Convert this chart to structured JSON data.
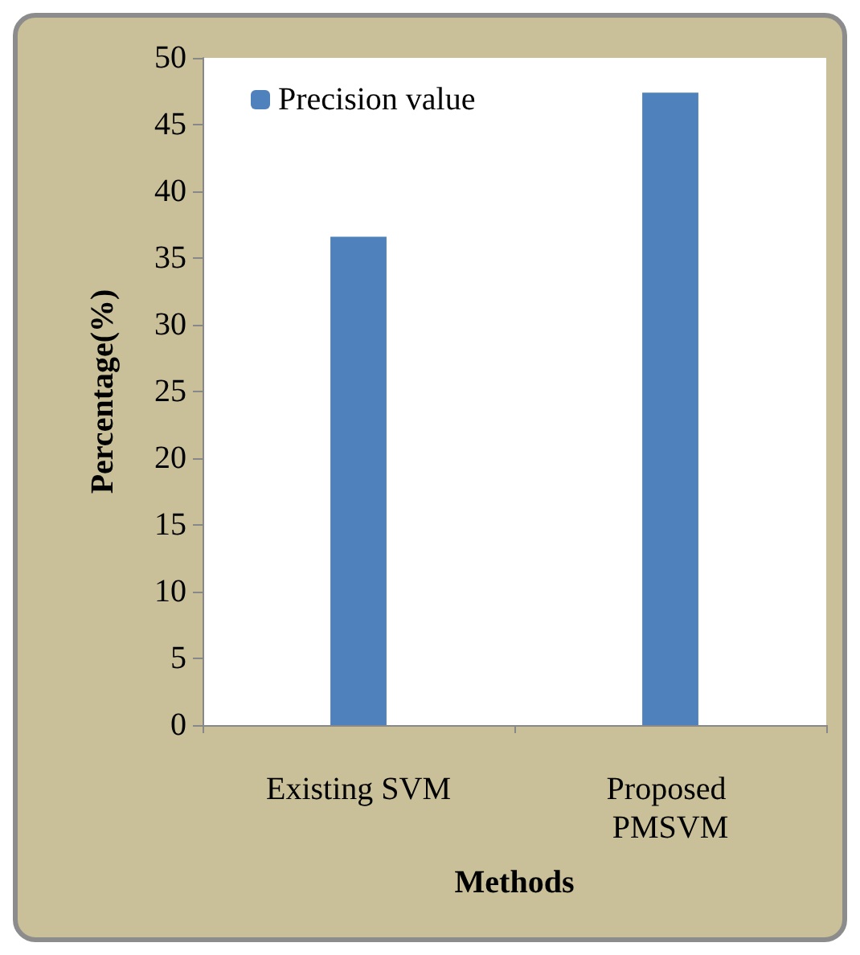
{
  "chart_data": {
    "type": "bar",
    "xlabel": "Methods",
    "ylabel": "Percentage(%)",
    "categories": [
      "Existing SVM",
      "Proposed PMSVM"
    ],
    "series": [
      {
        "name": "Precision value",
        "color": "#4f81bd",
        "values": [
          36.6,
          47.4
        ]
      }
    ],
    "ylim": [
      0,
      50
    ],
    "yticks": [
      0,
      5,
      10,
      15,
      20,
      25,
      30,
      35,
      40,
      45,
      50
    ],
    "grid": false,
    "legend": "top left"
  }
}
